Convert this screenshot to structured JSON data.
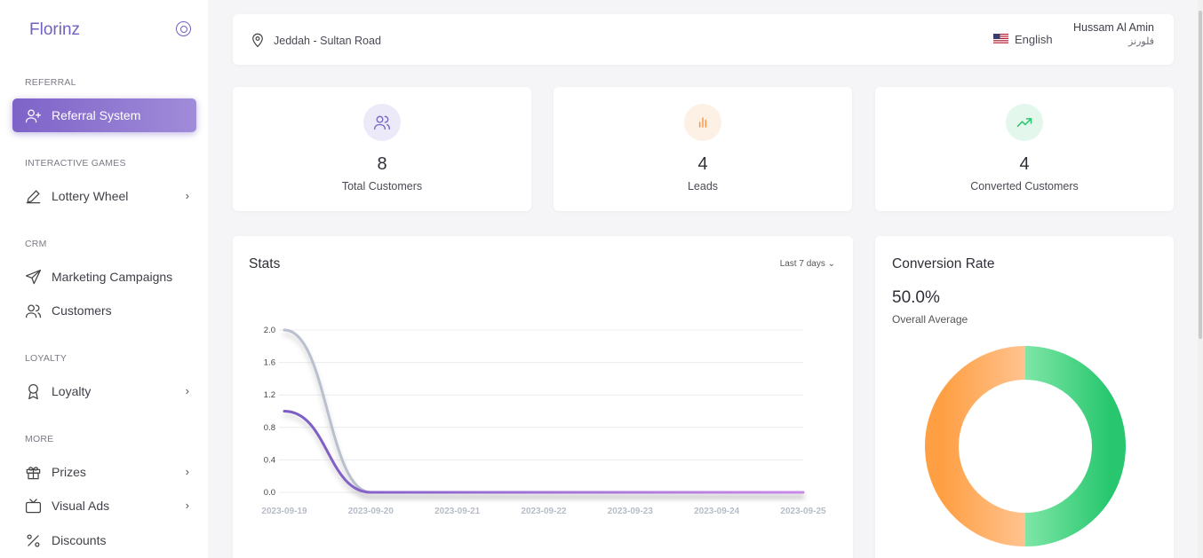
{
  "app": {
    "brand": "Florinz"
  },
  "sidebar": {
    "sections": [
      {
        "label": "REFERRAL"
      },
      {
        "label": "INTERACTIVE GAMES"
      },
      {
        "label": "CRM"
      },
      {
        "label": "LOYALTY"
      },
      {
        "label": "MORE"
      }
    ],
    "items": [
      {
        "label": "Referral System",
        "icon": "user-plus-icon",
        "active": true
      },
      {
        "label": "Lottery Wheel",
        "icon": "pencil-icon",
        "chevron": "›"
      },
      {
        "label": "Marketing Campaigns",
        "icon": "send-icon"
      },
      {
        "label": "Customers",
        "icon": "users-icon"
      },
      {
        "label": "Loyalty",
        "icon": "award-icon",
        "chevron": "›"
      },
      {
        "label": "Prizes",
        "icon": "gift-icon",
        "chevron": "›"
      },
      {
        "label": "Visual Ads",
        "icon": "tv-icon",
        "chevron": "›"
      },
      {
        "label": "Discounts",
        "icon": "percent-icon"
      }
    ]
  },
  "topbar": {
    "location": "Jeddah - Sultan Road",
    "language": "English",
    "user_name": "Hussam Al Amin",
    "user_subtitle": "فلورنز"
  },
  "stats_cards": [
    {
      "value": "8",
      "label": "Total Customers",
      "icon": "users-icon",
      "color": "#7361c2",
      "bg": "#ece9f8"
    },
    {
      "value": "4",
      "label": "Leads",
      "icon": "bar-chart-icon",
      "color": "#f59a4a",
      "bg": "#fdf0e4"
    },
    {
      "value": "4",
      "label": "Converted Customers",
      "icon": "trending-up-icon",
      "color": "#28c76f",
      "bg": "#e3f7ec"
    }
  ],
  "stats_chart": {
    "title": "Stats",
    "range_label": "Last 7 days ⌄"
  },
  "conversion": {
    "title": "Conversion Rate",
    "value": "50.0%",
    "subtitle": "Overall Average"
  },
  "colors": {
    "accent": "#7361c2",
    "orange": "#ffa24c",
    "green": "#28c76f",
    "grey_series": "#b9bfcc"
  },
  "chart_data": [
    {
      "type": "line",
      "title": "Stats",
      "x": [
        "2023-09-19",
        "2023-09-20",
        "2023-09-21",
        "2023-09-22",
        "2023-09-23",
        "2023-09-24",
        "2023-09-25"
      ],
      "series": [
        {
          "values": [
            2,
            0,
            0,
            0,
            0,
            0,
            0
          ],
          "color": "#b9bfcc"
        },
        {
          "values": [
            1,
            0,
            0,
            0,
            0,
            0,
            0
          ],
          "color": "#7a5cc4"
        }
      ],
      "yticks": [
        "0.0",
        "0.4",
        "0.8",
        "1.2",
        "1.6",
        "2.0"
      ],
      "ylim": [
        0,
        2
      ],
      "grid": true
    },
    {
      "type": "pie",
      "title": "Conversion Rate",
      "values": [
        50,
        50
      ],
      "colors": [
        "#28c76f",
        "#ff9f43"
      ]
    }
  ]
}
